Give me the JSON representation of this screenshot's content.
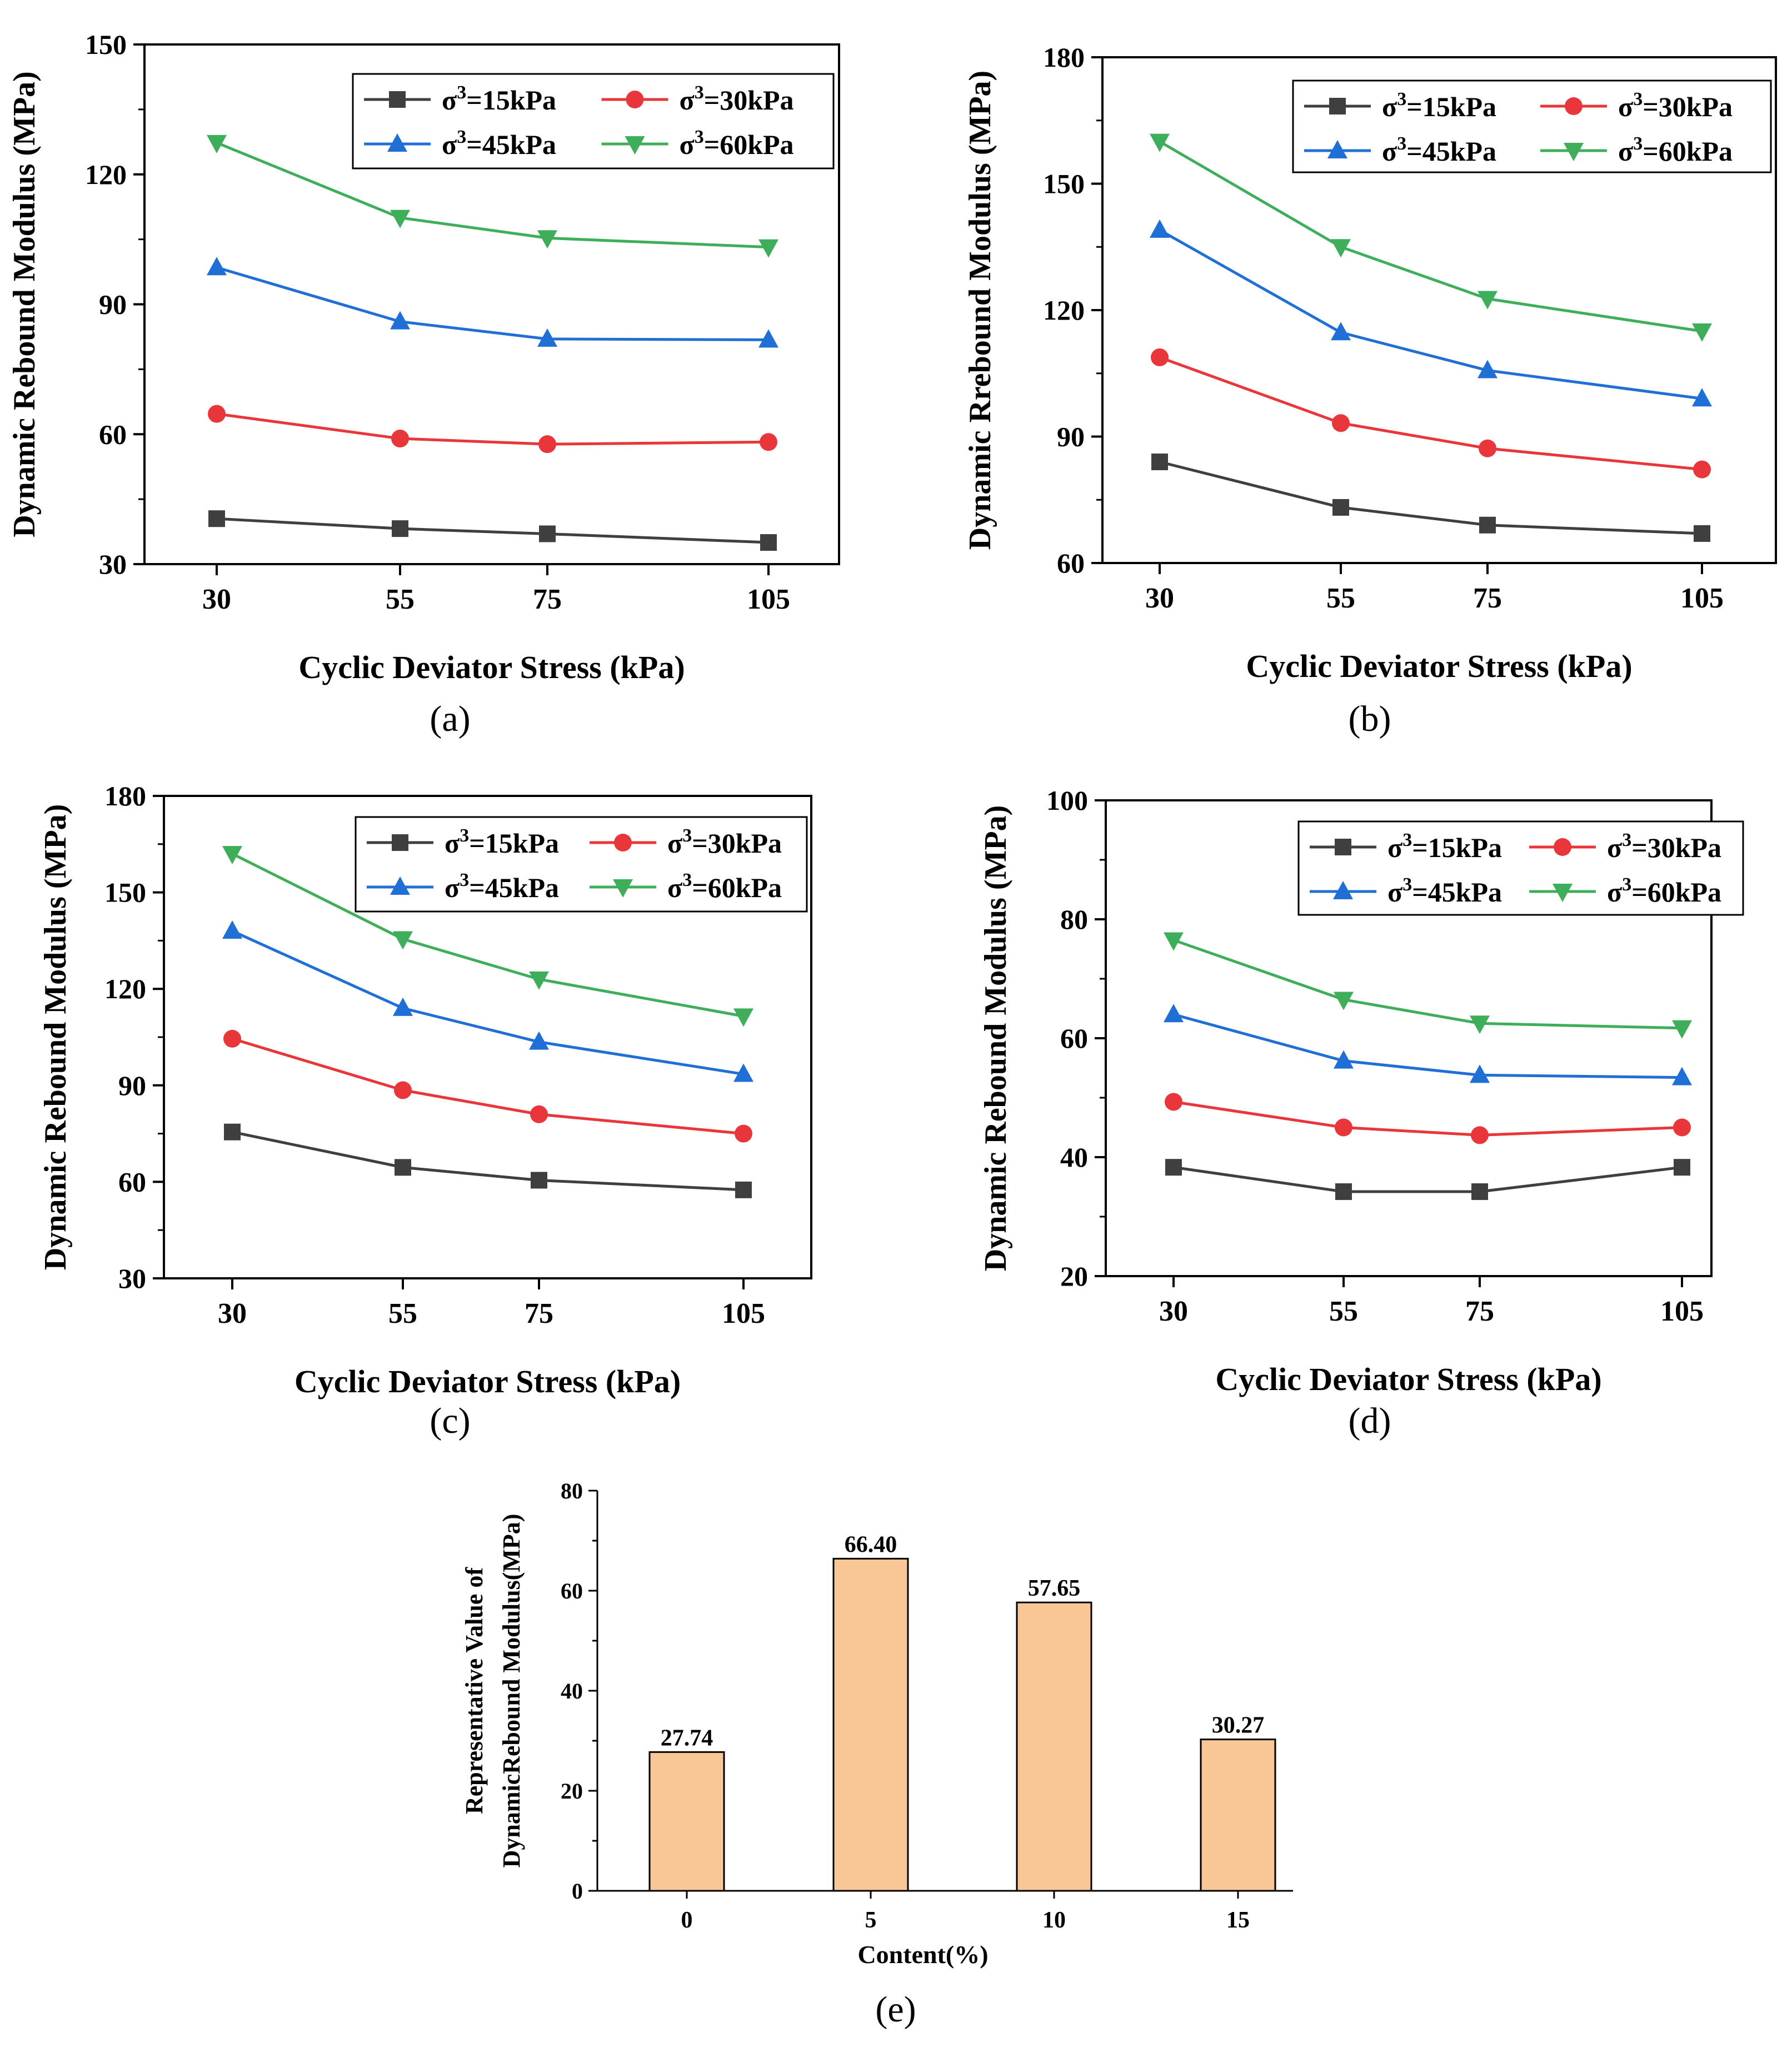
{
  "figure": "five-panel chart figure",
  "colors": {
    "s15": "#3f3f3f",
    "s30": "#e8363a",
    "s45": "#1f6fd6",
    "s60": "#3fae5a",
    "bar_fill": "#f9c795",
    "axis": "#000000"
  },
  "chart_data": [
    {
      "id": "a",
      "type": "line",
      "panel_label": "(a)",
      "xlabel": "Cyclic Deviator Stress (kPa)",
      "ylabel": "Dynamic Rebound Modulus (MPa)",
      "categories": [
        "30",
        "55",
        "75",
        "105"
      ],
      "ylim": [
        30,
        150
      ],
      "yticks": [
        "30",
        "60",
        "90",
        "120",
        "150"
      ],
      "legend_position": "top-right",
      "series": [
        {
          "name": "σ3=15kPa",
          "label_base": "σ",
          "label_sup": "3",
          "label_rest": "=15kPa",
          "marker": "square",
          "color_key": "s15",
          "values": [
            40.5,
            38.2,
            37.0,
            35.0
          ]
        },
        {
          "name": "σ3=30kPa",
          "label_base": "σ",
          "label_sup": "3",
          "label_rest": "=30kPa",
          "marker": "circle",
          "color_key": "s30",
          "values": [
            64.7,
            59.0,
            57.7,
            58.2
          ]
        },
        {
          "name": "σ3=45kPa",
          "label_base": "σ",
          "label_sup": "3",
          "label_rest": "=45kPa",
          "marker": "triangle-up",
          "color_key": "s45",
          "values": [
            98.5,
            86.0,
            82.0,
            81.8
          ]
        },
        {
          "name": "σ3=60kPa",
          "label_base": "σ",
          "label_sup": "3",
          "label_rest": "=60kPa",
          "marker": "triangle-down",
          "color_key": "s60",
          "values": [
            127.3,
            110.0,
            105.3,
            103.2
          ]
        }
      ]
    },
    {
      "id": "b",
      "type": "line",
      "panel_label": "(b)",
      "xlabel": "Cyclic Deviator Stress (kPa)",
      "ylabel": "Dynamic Rrebound Modulus (MPa)",
      "categories": [
        "30",
        "55",
        "75",
        "105"
      ],
      "ylim": [
        60,
        180
      ],
      "yticks": [
        "60",
        "90",
        "120",
        "150",
        "180"
      ],
      "legend_position": "top-right",
      "series": [
        {
          "name": "σ3=15kPa",
          "label_base": "σ",
          "label_sup": "3",
          "label_rest": "=15kPa",
          "marker": "square",
          "color_key": "s15",
          "values": [
            84.0,
            73.2,
            69.0,
            67.0
          ]
        },
        {
          "name": "σ3=30kPa",
          "label_base": "σ",
          "label_sup": "3",
          "label_rest": "=30kPa",
          "marker": "circle",
          "color_key": "s30",
          "values": [
            108.8,
            93.2,
            87.2,
            82.2
          ]
        },
        {
          "name": "σ3=45kPa",
          "label_base": "σ",
          "label_sup": "3",
          "label_rest": "=45kPa",
          "marker": "triangle-up",
          "color_key": "s45",
          "values": [
            139.0,
            114.7,
            105.7,
            99.0
          ]
        },
        {
          "name": "σ3=60kPa",
          "label_base": "σ",
          "label_sup": "3",
          "label_rest": "=60kPa",
          "marker": "triangle-down",
          "color_key": "s60",
          "values": [
            160.0,
            135.0,
            122.7,
            115.0
          ]
        }
      ]
    },
    {
      "id": "c",
      "type": "line",
      "panel_label": "(c)",
      "xlabel": "Cyclic Deviator Stress (kPa)",
      "ylabel": "Dynamic Rebound Modulus (MPa)",
      "categories": [
        "30",
        "55",
        "75",
        "105"
      ],
      "ylim": [
        30,
        180
      ],
      "yticks": [
        "30",
        "60",
        "90",
        "120",
        "150",
        "180"
      ],
      "legend_position": "top-right",
      "series": [
        {
          "name": "σ3=15kPa",
          "label_base": "σ",
          "label_sup": "3",
          "label_rest": "=15kPa",
          "marker": "square",
          "color_key": "s15",
          "values": [
            75.5,
            64.5,
            60.5,
            57.5
          ]
        },
        {
          "name": "σ3=30kPa",
          "label_base": "σ",
          "label_sup": "3",
          "label_rest": "=30kPa",
          "marker": "circle",
          "color_key": "s30",
          "values": [
            104.5,
            88.5,
            81.0,
            75.0
          ]
        },
        {
          "name": "σ3=45kPa",
          "label_base": "σ",
          "label_sup": "3",
          "label_rest": "=45kPa",
          "marker": "triangle-up",
          "color_key": "s45",
          "values": [
            138.0,
            114.0,
            103.5,
            93.5
          ]
        },
        {
          "name": "σ3=60kPa",
          "label_base": "σ",
          "label_sup": "3",
          "label_rest": "=60kPa",
          "marker": "triangle-down",
          "color_key": "s60",
          "values": [
            162.0,
            135.5,
            123.0,
            111.5
          ]
        }
      ]
    },
    {
      "id": "d",
      "type": "line",
      "panel_label": "(d)",
      "xlabel": "Cyclic Deviator Stress (kPa)",
      "ylabel": "Dynamic Rebound Modulus (MPa)",
      "categories": [
        "30",
        "55",
        "75",
        "105"
      ],
      "ylim": [
        20,
        100
      ],
      "yticks": [
        "20",
        "40",
        "60",
        "80",
        "100"
      ],
      "legend_position": "top-right",
      "series": [
        {
          "name": "σ3=15kPa",
          "label_base": "σ",
          "label_sup": "3",
          "label_rest": "=15kPa",
          "marker": "square",
          "color_key": "s15",
          "values": [
            38.3,
            34.2,
            34.2,
            38.3
          ]
        },
        {
          "name": "σ3=30kPa",
          "label_base": "σ",
          "label_sup": "3",
          "label_rest": "=30kPa",
          "marker": "circle",
          "color_key": "s30",
          "values": [
            49.3,
            45.0,
            43.7,
            45.0
          ]
        },
        {
          "name": "σ3=45kPa",
          "label_base": "σ",
          "label_sup": "3",
          "label_rest": "=45kPa",
          "marker": "triangle-up",
          "color_key": "s45",
          "values": [
            64.0,
            56.2,
            53.8,
            53.4
          ]
        },
        {
          "name": "σ3=60kPa",
          "label_base": "σ",
          "label_sup": "3",
          "label_rest": "=60kPa",
          "marker": "triangle-down",
          "color_key": "s60",
          "values": [
            76.5,
            66.5,
            62.5,
            61.7
          ]
        }
      ]
    },
    {
      "id": "e",
      "type": "bar",
      "panel_label": "(e)",
      "xlabel": "Content(%)",
      "ylabel_lines": [
        "Representative Value of",
        "DynamicRebound Modulus(MPa)"
      ],
      "categories": [
        "0",
        "5",
        "10",
        "15"
      ],
      "values": [
        27.74,
        66.4,
        57.65,
        30.27
      ],
      "data_labels": [
        "27.74",
        "66.40",
        "57.65",
        "30.27"
      ],
      "ylim": [
        0,
        80
      ],
      "yticks": [
        "0",
        "20",
        "40",
        "60",
        "80"
      ]
    }
  ]
}
